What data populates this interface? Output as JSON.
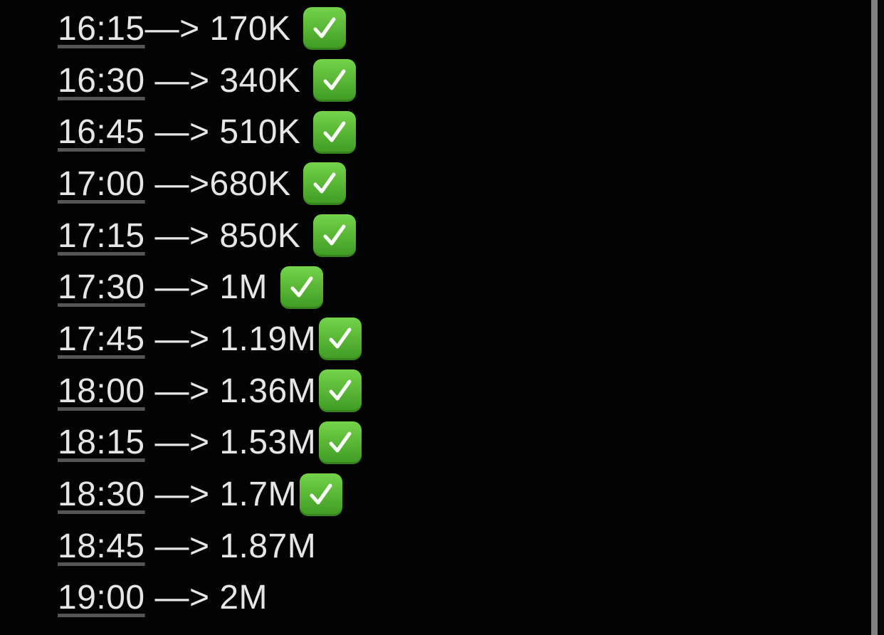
{
  "rows": [
    {
      "time": "16:15",
      "rest": "—> 170K ",
      "checked": true
    },
    {
      "time": "16:30",
      "rest": " —> 340K ",
      "checked": true
    },
    {
      "time": "16:45",
      "rest": " —> 510K ",
      "checked": true
    },
    {
      "time": "17:00",
      "rest": " —>680K ",
      "checked": true
    },
    {
      "time": "17:15",
      "rest": " —> 850K ",
      "checked": true
    },
    {
      "time": "17:30",
      "rest": " —> 1M ",
      "checked": true
    },
    {
      "time": "17:45",
      "rest": " —> 1.19M",
      "checked": true
    },
    {
      "time": "18:00",
      "rest": " —> 1.36M",
      "checked": true
    },
    {
      "time": "18:15",
      "rest": " —> 1.53M",
      "checked": true
    },
    {
      "time": "18:30",
      "rest": " —> 1.7M",
      "checked": true
    },
    {
      "time": "18:45",
      "rest": " —> 1.87M",
      "checked": false
    },
    {
      "time": "19:00",
      "rest": " —> 2M",
      "checked": false
    }
  ],
  "icons": {
    "check": "white-heavy-check-mark-emoji"
  },
  "colors": {
    "check_green": "#4fb52c",
    "text": "#e6e6e6",
    "background": "#030303"
  }
}
